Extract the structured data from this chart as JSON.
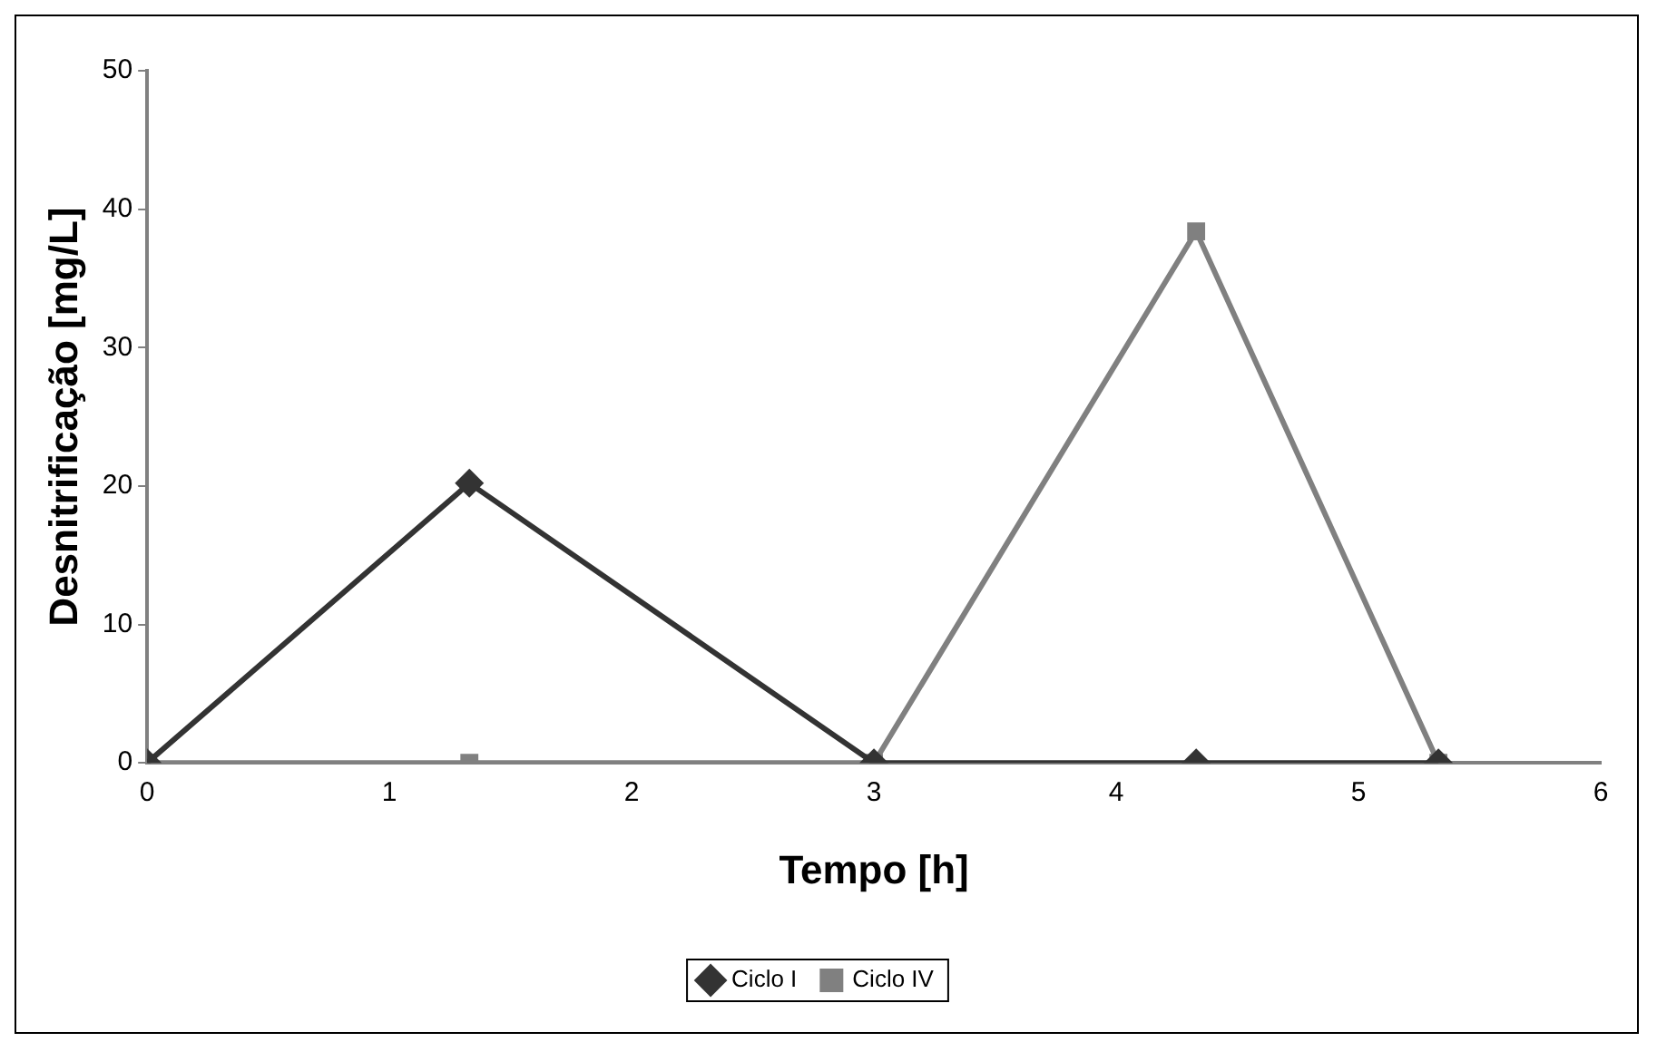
{
  "chart_data": {
    "type": "line",
    "xlabel": "Tempo [h]",
    "ylabel": "Desnitrificação [mg/L]",
    "xlim": [
      0,
      6
    ],
    "xticks": [
      0,
      1,
      2,
      3,
      4,
      5,
      6
    ],
    "ylim": [
      0,
      50
    ],
    "yticks": [
      0,
      10,
      20,
      30,
      40,
      50
    ],
    "grid": false,
    "legend": "bottom",
    "line_style": "solid",
    "series": [
      {
        "name": "Ciclo I",
        "color": "#333333",
        "marker": "diamond",
        "x": [
          0,
          1.33,
          3,
          4.33,
          5.33
        ],
        "values": [
          0,
          20.2,
          0,
          0,
          0
        ]
      },
      {
        "name": "Ciclo IV",
        "color": "#808080",
        "marker": "square",
        "x": [
          0,
          1.33,
          3,
          4.33,
          5.33
        ],
        "values": [
          0,
          0,
          0,
          38.4,
          0
        ]
      }
    ]
  }
}
